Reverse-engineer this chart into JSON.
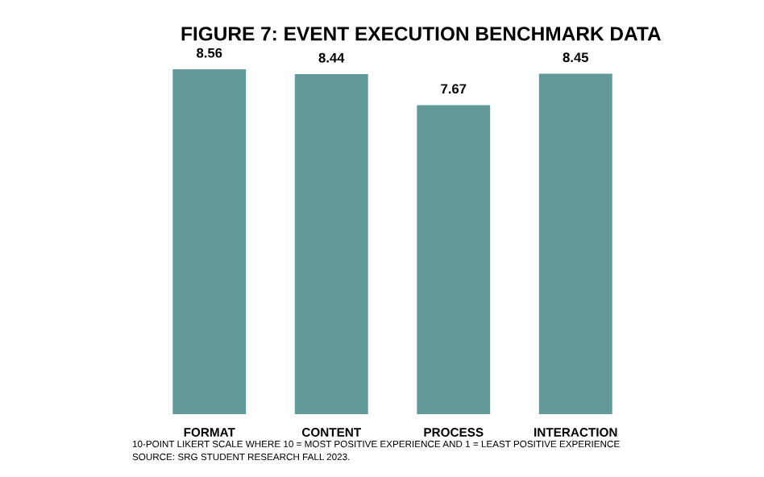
{
  "chart_data": {
    "type": "bar",
    "title": "FIGURE 7: EVENT EXECUTION BENCHMARK DATA",
    "categories": [
      "FORMAT",
      "CONTENT",
      "PROCESS",
      "INTERACTION"
    ],
    "values": [
      8.56,
      8.44,
      7.67,
      8.45
    ],
    "color": "#629a99",
    "data_labels": true,
    "grid": false,
    "legend": false,
    "annotations": [
      "10-POINT LIKERT SCALE WHERE 10 = MOST POSITIVE EXPERIENCE AND 1 = LEAST POSITIVE EXPERIENCE",
      "SOURCE: SRG STUDENT RESEARCH FALL 2023."
    ]
  }
}
